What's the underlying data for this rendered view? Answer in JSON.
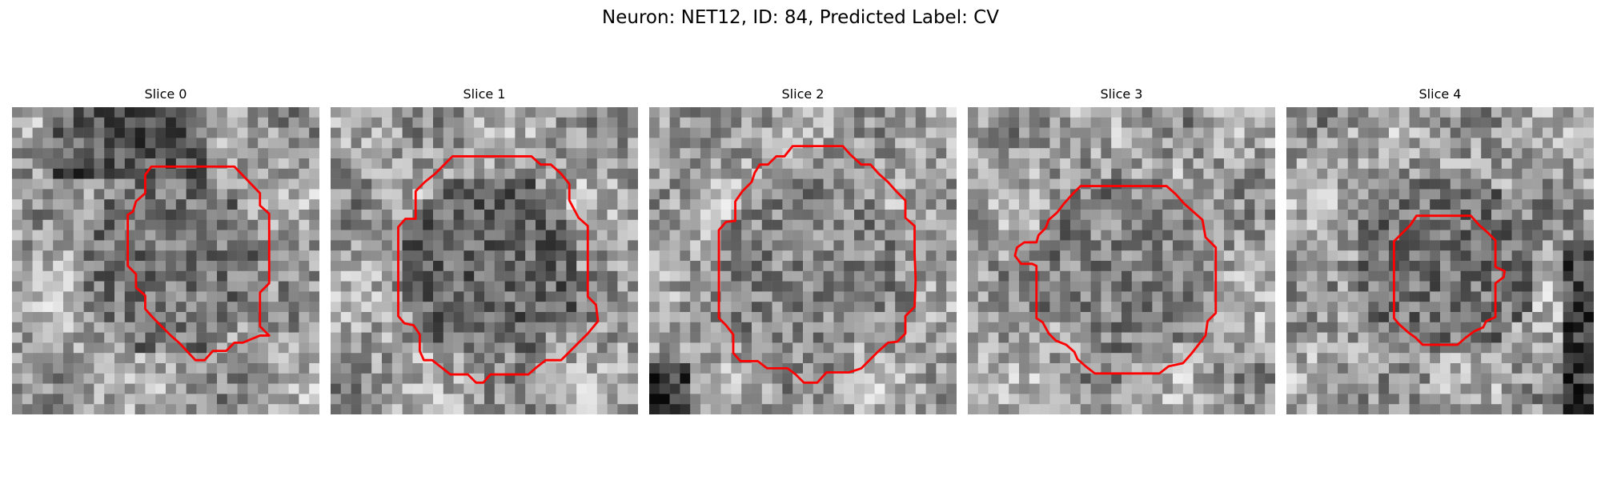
{
  "title": "Neuron: NET12, ID: 84, Predicted Label: CV",
  "contour_color": "#ff0000",
  "colormap": "gray",
  "slices": [
    {
      "label": "Slice 0",
      "seed": 11,
      "center_tone": 0.45,
      "dark_blob": "top"
    },
    {
      "label": "Slice 1",
      "seed": 23,
      "center_tone": 0.4,
      "dark_blob": "none"
    },
    {
      "label": "Slice 2",
      "seed": 37,
      "center_tone": 0.52,
      "dark_blob": "corner"
    },
    {
      "label": "Slice 3",
      "seed": 51,
      "center_tone": 0.5,
      "dark_blob": "none"
    },
    {
      "label": "Slice 4",
      "seed": 67,
      "center_tone": 0.45,
      "dark_blob": "right"
    }
  ]
}
